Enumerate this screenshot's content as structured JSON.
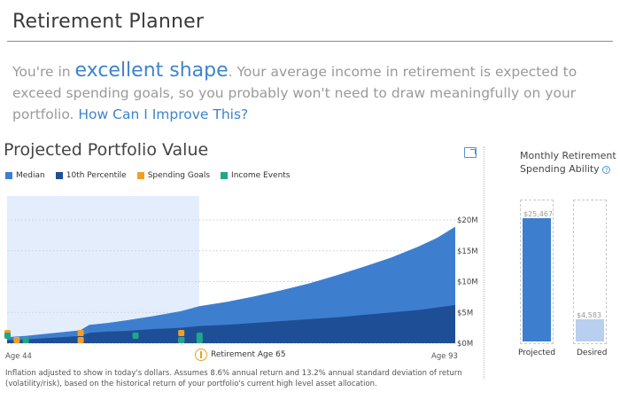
{
  "header": {
    "title": "Retirement Planner"
  },
  "summary": {
    "prefix": "You're in ",
    "highlight": "excellent shape",
    "body": ". Your average income in retirement is expected to exceed spending goals, so you probably won't need to draw meaningfully on your portfolio. ",
    "link": "How Can I Improve This?"
  },
  "portfolio": {
    "title": "Projected Portfolio Value",
    "legend": [
      {
        "label": "Median",
        "color": "#3d7fce"
      },
      {
        "label": "10th Percentile",
        "color": "#1e4f96"
      },
      {
        "label": "Spending Goals",
        "color": "#f0a028"
      },
      {
        "label": "Income Events",
        "color": "#1fa888"
      }
    ],
    "age_start": "Age 44",
    "age_end": "Age 93",
    "retirement_marker": "Retirement Age 65",
    "footnote": "Inflation adjusted to show in today's dollars. Assumes 8.6% annual return and 13.2% annual standard deviation of return (volatility/risk), based on the historical return of your portfolio's current high level asset allocation.",
    "icons": {
      "export": "export-icon",
      "retirement": "retirement-marker-icon"
    }
  },
  "chart_data": {
    "type": "area",
    "x": [
      44,
      46,
      48,
      50,
      52,
      53,
      55,
      57,
      60,
      63,
      65,
      68,
      71,
      74,
      77,
      80,
      83,
      86,
      89,
      91,
      93
    ],
    "series": [
      {
        "name": "Median",
        "color": "#3d7fce",
        "values": [
          1.0,
          1.2,
          1.5,
          1.8,
          2.1,
          3.0,
          3.3,
          3.7,
          4.4,
          5.2,
          6.0,
          6.7,
          7.6,
          8.6,
          9.7,
          11.0,
          12.4,
          13.9,
          15.7,
          17.1,
          18.9
        ]
      },
      {
        "name": "10th Percentile",
        "color": "#1e4f96",
        "values": [
          0.5,
          0.6,
          0.8,
          1.0,
          1.2,
          1.7,
          1.9,
          2.0,
          2.3,
          2.5,
          2.8,
          3.0,
          3.3,
          3.6,
          3.9,
          4.2,
          4.6,
          5.0,
          5.4,
          5.8,
          6.2
        ]
      }
    ],
    "retirement_age": 65,
    "xlim": [
      44,
      93
    ],
    "ylim": [
      0,
      20
    ],
    "yticks": [
      "$0M",
      "$5M",
      "$10M",
      "$15M",
      "$20M"
    ],
    "ytick_values": [
      0,
      5,
      10,
      15,
      20
    ],
    "spending_goal_ages": [
      44,
      45,
      52,
      52,
      63,
      63
    ],
    "income_event_ages": [
      44,
      46,
      58,
      63,
      65,
      65
    ]
  },
  "spending": {
    "title": "Monthly Retirement Spending Ability",
    "help_icon": "?",
    "projected_label": "Projected",
    "desired_label": "Desired",
    "projected_value": "$25,467",
    "desired_value": "$4,583",
    "projected_amount": 25467,
    "desired_amount": 4583,
    "projected_color": "#3d7fce",
    "desired_color": "#b9cff0"
  }
}
